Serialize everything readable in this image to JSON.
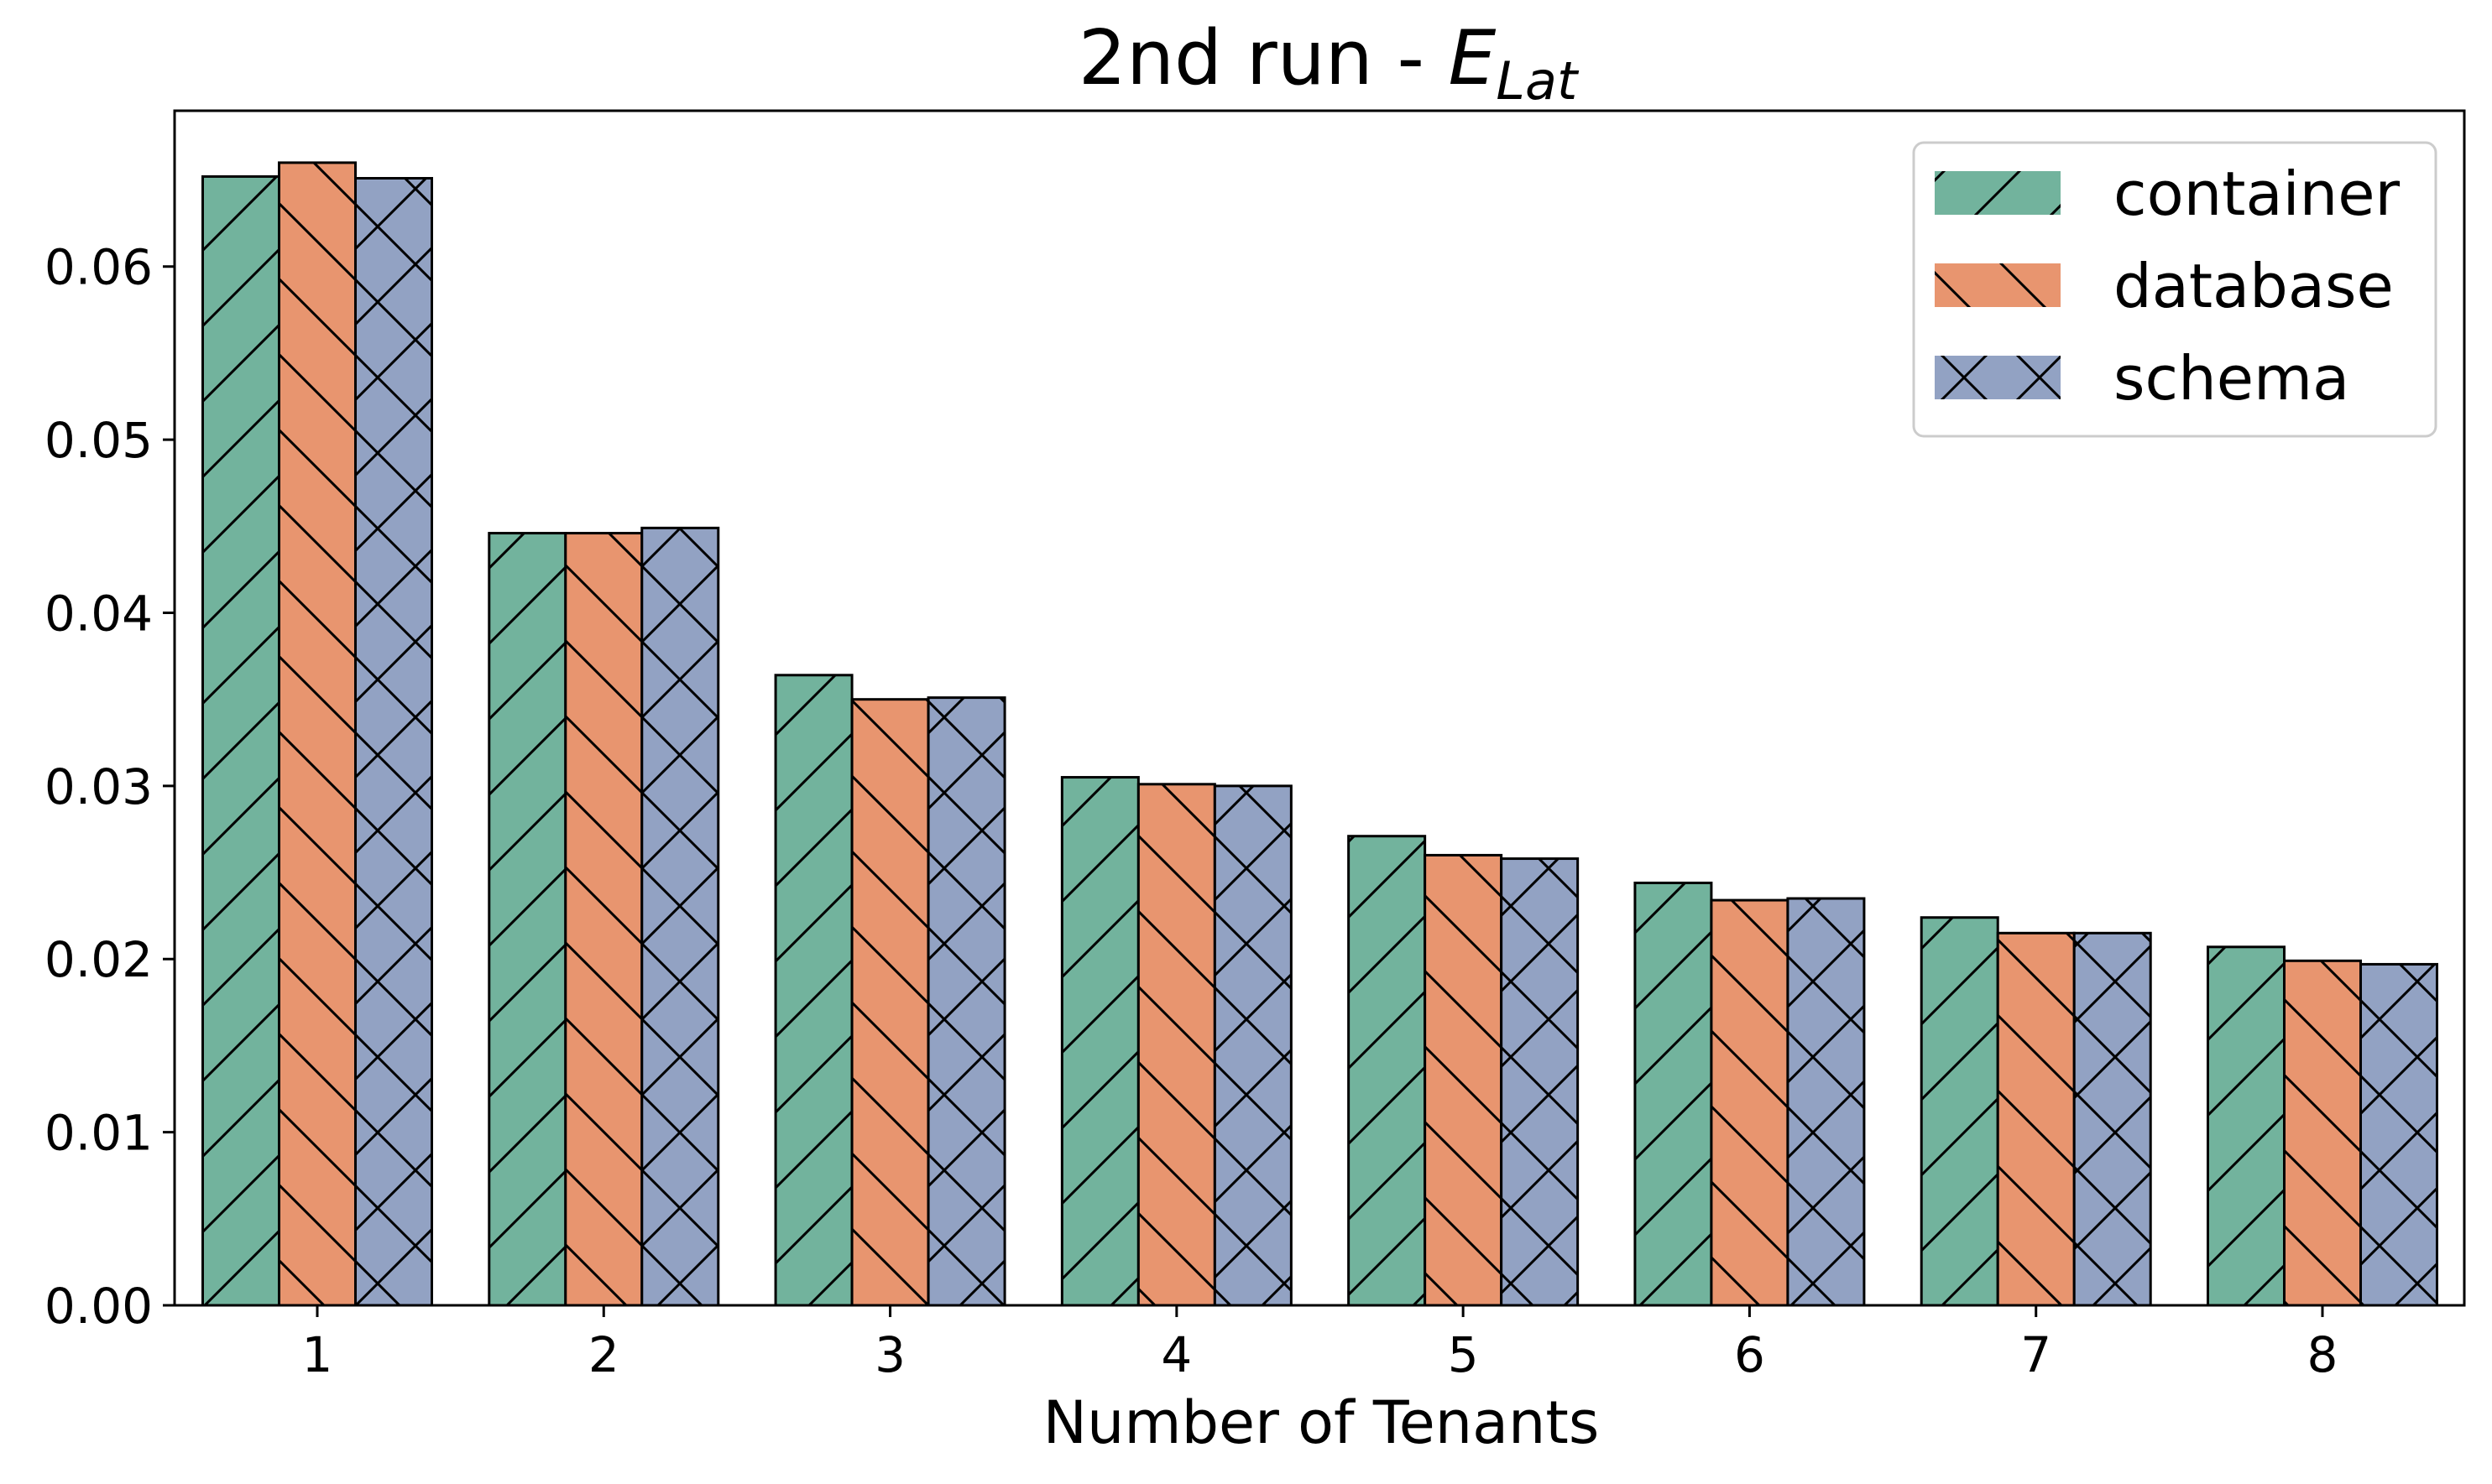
{
  "chart_data": {
    "type": "bar",
    "title_main": "2nd run - ",
    "title_var": "E",
    "title_sub": "Lat",
    "xlabel": "Number of Tenants",
    "ylabel": "",
    "categories": [
      "1",
      "2",
      "3",
      "4",
      "5",
      "6",
      "7",
      "8"
    ],
    "ylim": [
      0,
      0.069
    ],
    "yticks": [
      "0.00",
      "0.01",
      "0.02",
      "0.03",
      "0.04",
      "0.05",
      "0.06"
    ],
    "grid": false,
    "legend_position": "top-right",
    "series": [
      {
        "name": "container",
        "color": "#72b39d",
        "hatch": "forward-diagonal",
        "values": [
          0.0652,
          0.0446,
          0.0364,
          0.0305,
          0.0271,
          0.0244,
          0.0224,
          0.0207
        ]
      },
      {
        "name": "database",
        "color": "#e8956f",
        "hatch": "back-diagonal",
        "values": [
          0.066,
          0.0446,
          0.035,
          0.0301,
          0.026,
          0.0234,
          0.0215,
          0.0199
        ]
      },
      {
        "name": "schema",
        "color": "#92a2c3",
        "hatch": "cross",
        "values": [
          0.0651,
          0.0449,
          0.0351,
          0.03,
          0.0258,
          0.0235,
          0.0215,
          0.0197
        ]
      }
    ]
  }
}
